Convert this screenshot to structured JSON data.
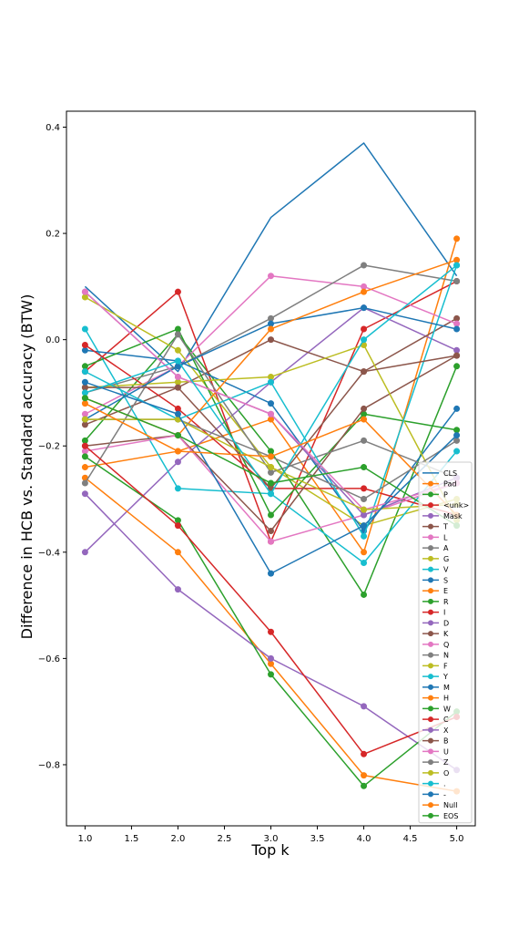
{
  "chart_data": {
    "type": "line",
    "title": "",
    "xlabel": "Top k",
    "ylabel": "Difference in HCB vs. Standard accuracy (BTW)",
    "x": [
      1,
      2,
      3,
      4,
      5
    ],
    "xlim": [
      0.8,
      5.2
    ],
    "ylim": [
      -0.915,
      0.43
    ],
    "xticks": [
      "1.0",
      "1.5",
      "2.0",
      "2.5",
      "3.0",
      "3.5",
      "4.0",
      "4.5",
      "5.0"
    ],
    "yticks": [
      "0.4",
      "0.2",
      "0.0",
      "−0.2",
      "−0.4",
      "−0.6",
      "−0.8"
    ],
    "legend_position": "lower-right",
    "series": [
      {
        "name": "CLS",
        "color": "#1f77b4",
        "marker": false,
        "values": [
          0.1,
          -0.06,
          0.23,
          0.37,
          0.12
        ]
      },
      {
        "name": "Pad",
        "color": "#ff7f0e",
        "marker": true,
        "values": [
          -0.24,
          -0.21,
          -0.15,
          -0.4,
          0.19
        ]
      },
      {
        "name": "P",
        "color": "#2ca02c",
        "marker": true,
        "values": [
          -0.19,
          0.01,
          -0.21,
          -0.48,
          -0.05
        ]
      },
      {
        "name": "<unk>",
        "color": "#d62728",
        "marker": true,
        "values": [
          -0.06,
          0.09,
          -0.38,
          0.02,
          0.11
        ]
      },
      {
        "name": "Mask",
        "color": "#9467bd",
        "marker": true,
        "values": [
          -0.4,
          -0.23,
          -0.08,
          0.06,
          -0.02
        ]
      },
      {
        "name": "T",
        "color": "#8c564b",
        "marker": true,
        "values": [
          -0.16,
          -0.09,
          0.0,
          -0.06,
          0.04
        ]
      },
      {
        "name": "L",
        "color": "#e377c2",
        "marker": true,
        "values": [
          -0.14,
          -0.05,
          0.12,
          0.1,
          0.03
        ]
      },
      {
        "name": "A",
        "color": "#7f7f7f",
        "marker": true,
        "values": [
          -0.1,
          -0.05,
          0.04,
          0.14,
          0.11
        ]
      },
      {
        "name": "G",
        "color": "#bcbd22",
        "marker": true,
        "values": [
          0.08,
          -0.02,
          -0.24,
          -0.35,
          -0.3
        ]
      },
      {
        "name": "V",
        "color": "#17becf",
        "marker": true,
        "values": [
          0.02,
          -0.28,
          -0.29,
          -0.42,
          -0.21
        ]
      },
      {
        "name": "S",
        "color": "#1f77b4",
        "marker": true,
        "values": [
          -0.02,
          -0.04,
          -0.12,
          -0.36,
          -0.13
        ]
      },
      {
        "name": "E",
        "color": "#ff7f0e",
        "marker": true,
        "values": [
          -0.26,
          -0.4,
          -0.61,
          -0.82,
          -0.85
        ]
      },
      {
        "name": "R",
        "color": "#2ca02c",
        "marker": true,
        "values": [
          -0.05,
          0.02,
          -0.33,
          -0.14,
          -0.17
        ]
      },
      {
        "name": "I",
        "color": "#d62728",
        "marker": true,
        "values": [
          -0.01,
          -0.13,
          -0.28,
          -0.28,
          -0.33
        ]
      },
      {
        "name": "D",
        "color": "#9467bd",
        "marker": true,
        "values": [
          -0.29,
          -0.47,
          -0.6,
          -0.69,
          -0.81
        ]
      },
      {
        "name": "K",
        "color": "#8c564b",
        "marker": true,
        "values": [
          -0.2,
          -0.18,
          -0.36,
          -0.13,
          -0.03
        ]
      },
      {
        "name": "Q",
        "color": "#e377c2",
        "marker": true,
        "values": [
          -0.21,
          -0.18,
          -0.38,
          -0.33,
          -0.27
        ]
      },
      {
        "name": "N",
        "color": "#7f7f7f",
        "marker": true,
        "values": [
          -0.27,
          0.01,
          -0.25,
          -0.19,
          -0.26
        ]
      },
      {
        "name": "F",
        "color": "#bcbd22",
        "marker": true,
        "values": [
          -0.09,
          -0.08,
          -0.07,
          -0.01,
          -0.34
        ]
      },
      {
        "name": "Y",
        "color": "#17becf",
        "marker": true,
        "values": [
          -0.06,
          -0.15,
          -0.08,
          -0.37,
          0.14
        ]
      },
      {
        "name": "M",
        "color": "#1f77b4",
        "marker": true,
        "values": [
          -0.15,
          -0.05,
          0.03,
          0.06,
          0.02
        ]
      },
      {
        "name": "H",
        "color": "#ff7f0e",
        "marker": true,
        "values": [
          -0.11,
          -0.18,
          0.02,
          0.09,
          0.15
        ]
      },
      {
        "name": "W",
        "color": "#2ca02c",
        "marker": true,
        "values": [
          -0.22,
          -0.34,
          -0.63,
          -0.84,
          -0.7
        ]
      },
      {
        "name": "C",
        "color": "#d62728",
        "marker": true,
        "values": [
          -0.2,
          -0.35,
          -0.55,
          -0.78,
          -0.71
        ]
      },
      {
        "name": "X",
        "color": "#9467bd",
        "marker": true,
        "values": [
          0.09,
          -0.07,
          -0.14,
          -0.33,
          -0.26
        ]
      },
      {
        "name": "B",
        "color": "#8c564b",
        "marker": true,
        "values": [
          -0.09,
          -0.09,
          -0.28,
          -0.06,
          -0.03
        ]
      },
      {
        "name": "U",
        "color": "#e377c2",
        "marker": true,
        "values": [
          0.09,
          -0.07,
          -0.14,
          -0.32,
          -0.27
        ]
      },
      {
        "name": "Z",
        "color": "#7f7f7f",
        "marker": true,
        "values": [
          -0.15,
          -0.15,
          -0.22,
          -0.3,
          -0.19
        ]
      },
      {
        "name": "O",
        "color": "#bcbd22",
        "marker": true,
        "values": [
          -0.15,
          -0.15,
          -0.24,
          -0.32,
          -0.31
        ]
      },
      {
        "name": ".",
        "color": "#17becf",
        "marker": true,
        "values": [
          -0.1,
          -0.04,
          -0.29,
          0.0,
          0.14
        ]
      },
      {
        "name": "-",
        "color": "#1f77b4",
        "marker": true,
        "values": [
          -0.08,
          -0.14,
          -0.44,
          -0.35,
          -0.18
        ]
      },
      {
        "name": "Null",
        "color": "#ff7f0e",
        "marker": true,
        "values": [
          -0.12,
          -0.21,
          -0.22,
          -0.15,
          -0.33
        ]
      },
      {
        "name": "EOS",
        "color": "#2ca02c",
        "marker": true,
        "values": [
          -0.11,
          -0.18,
          -0.27,
          -0.24,
          -0.35
        ]
      }
    ]
  }
}
